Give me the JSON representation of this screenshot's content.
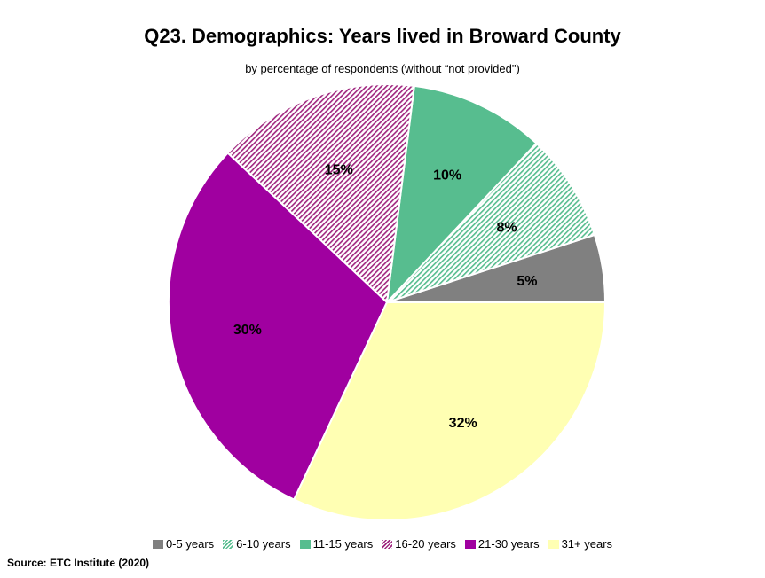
{
  "header": {
    "title": "Q23. Demographics: Years lived in Broward County",
    "subtitle": "by percentage of respondents (without “not provided\")"
  },
  "footer": {
    "source": "Source:  ETC Institute (2020)"
  },
  "chart_data": {
    "type": "pie",
    "title": "Q23. Demographics: Years lived in Broward County",
    "subtitle": "by percentage of respondents (without “not provided\")",
    "legend_position": "bottom",
    "slices": [
      {
        "label": "0-5 years",
        "value": 5,
        "display": "5%",
        "color": "#808080",
        "pattern": "solid"
      },
      {
        "label": "6-10 years",
        "value": 8,
        "display": "8%",
        "color": "#57bd8f",
        "pattern": "hatch"
      },
      {
        "label": "11-15 years",
        "value": 10,
        "display": "10%",
        "color": "#57bd8f",
        "pattern": "solid"
      },
      {
        "label": "16-20 years",
        "value": 15,
        "display": "15%",
        "color": "#a0267f",
        "pattern": "hatch"
      },
      {
        "label": "21-30 years",
        "value": 30,
        "display": "30%",
        "color": "#a000a0",
        "pattern": "solid"
      },
      {
        "label": "31+ years",
        "value": 32,
        "display": "32%",
        "color": "#ffffb3",
        "pattern": "solid"
      }
    ]
  }
}
